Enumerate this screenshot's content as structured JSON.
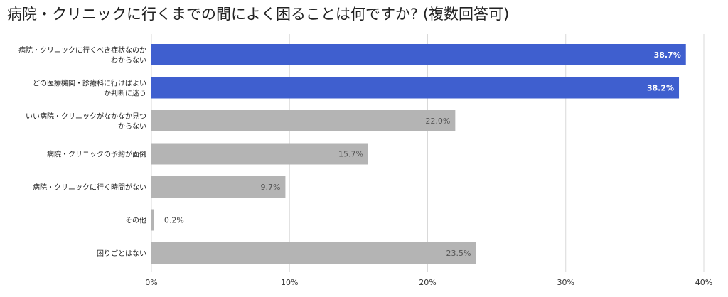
{
  "chart_data": {
    "type": "bar",
    "orientation": "horizontal",
    "title": "病院・クリニックに行くまでの間によく困ることは何ですか? (複数回答可)",
    "categories": [
      [
        "病院・クリニックに行くべき症状なのか",
        "わからない"
      ],
      [
        "どの医療機関・診療科に行けばよい",
        "か判断に迷う"
      ],
      [
        "いい病院・クリニックがなかなか見つ",
        "からない"
      ],
      [
        "病院・クリニックの予約が面倒"
      ],
      [
        "病院・クリニックに行く時間がない"
      ],
      [
        "その他"
      ],
      [
        "困りごとはない"
      ]
    ],
    "values": [
      38.7,
      38.2,
      22.0,
      15.7,
      9.7,
      0.2,
      23.5
    ],
    "value_labels": [
      "38.7%",
      "38.2%",
      "22.0%",
      "15.7%",
      "9.7%",
      "0.2%",
      "23.5%"
    ],
    "highlighted": [
      true,
      true,
      false,
      false,
      false,
      false,
      false
    ],
    "xlim": [
      0,
      40
    ],
    "xticks": [
      0,
      10,
      20,
      30,
      40
    ],
    "xtick_labels": [
      "0%",
      "10%",
      "20%",
      "30%",
      "40%"
    ],
    "grid": true,
    "colors": {
      "highlight": "#3f5fcf",
      "default": "#b4b4b4",
      "grid": "#d9d9d9",
      "highlight_text": "#ffffff",
      "default_text": "#555555"
    }
  }
}
